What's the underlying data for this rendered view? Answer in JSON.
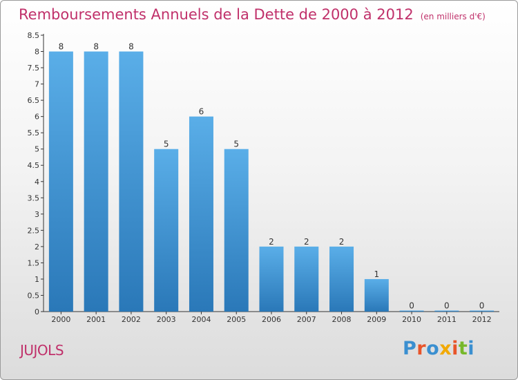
{
  "title": "Remboursements Annuels de la Dette de 2000 à 2012",
  "subtitle": "(en milliers d'€)",
  "commune": "JUJOLS",
  "logo": {
    "text": "Proxiti",
    "letter_colors": [
      "#3a8fd0",
      "#e8542a",
      "#3a8fd0",
      "#f2a900",
      "#e8542a",
      "#77b82a",
      "#3a8fd0"
    ]
  },
  "colors": {
    "title": "#c0306a",
    "bar_light": "#5aaee8",
    "bar_dark": "#2a78b8"
  },
  "chart_data": {
    "type": "bar",
    "title": "Remboursements Annuels de la Dette de 2000 à 2012",
    "subtitle": "(en milliers d'€)",
    "categories": [
      "2000",
      "2001",
      "2002",
      "2003",
      "2004",
      "2005",
      "2006",
      "2007",
      "2008",
      "2009",
      "2010",
      "2011",
      "2012"
    ],
    "values": [
      8,
      8,
      8,
      5,
      6,
      5,
      2,
      2,
      2,
      1,
      0,
      0,
      0
    ],
    "data_labels": [
      "8",
      "8",
      "8",
      "5",
      "6",
      "5",
      "2",
      "2",
      "2",
      "1",
      "0",
      "0",
      "0"
    ],
    "ylim": [
      0,
      8.5
    ],
    "yticks": [
      "0",
      "0.5",
      "1",
      "1.5",
      "2",
      "2.5",
      "3",
      "3.5",
      "4",
      "4.5",
      "5",
      "5.5",
      "6",
      "6.5",
      "7",
      "7.5",
      "8",
      "8.5"
    ],
    "grid": false
  }
}
